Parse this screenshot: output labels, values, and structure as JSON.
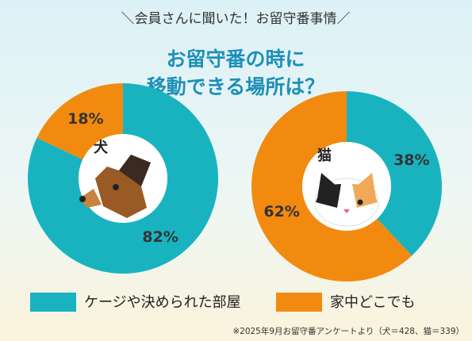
{
  "header": "＼会員さんに聞いた！お留守番事情／",
  "title": [
    "お留守番の時に",
    "移動できる場所は？"
  ],
  "legend": [
    {
      "name": "ケージや決められた部屋",
      "color": "#19b3c0"
    },
    {
      "name": "家中どこでも",
      "color": "#f28a0f"
    }
  ],
  "note": "※2025年9月お留守番アンケートより（犬＝428、猫＝339）",
  "chart_data": [
    {
      "type": "pie",
      "label": "犬",
      "values": [
        82,
        18
      ],
      "value_labels": [
        "82%",
        "18%"
      ]
    },
    {
      "type": "pie",
      "label": "猫",
      "values": [
        38,
        62
      ],
      "value_labels": [
        "38%",
        "62%"
      ]
    }
  ]
}
